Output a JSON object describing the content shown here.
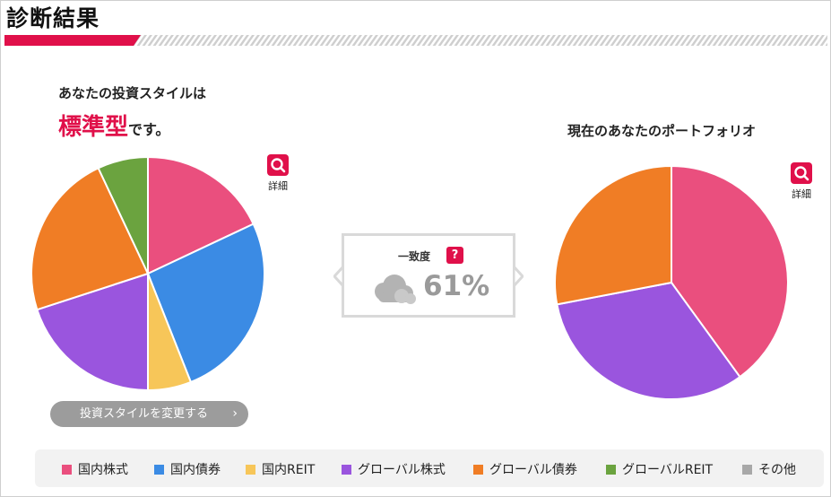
{
  "header": {
    "title": "診断結果"
  },
  "investment_style": {
    "intro": "あなたの投資スタイルは",
    "style_name": "標準型",
    "suffix": "です。"
  },
  "portfolio": {
    "title": "現在のあなたのポートフォリオ"
  },
  "detail": {
    "label": "詳細",
    "icon": "search-icon"
  },
  "match": {
    "label": "一致度",
    "help": "?",
    "value": "61%",
    "icon": "cloud-icon"
  },
  "change_button": {
    "label": "投資スタイルを変更する",
    "chevron": "›"
  },
  "colors": {
    "accent": "#e0104a",
    "domestic_stock": "#ea4f7e",
    "domestic_bond": "#3b8be4",
    "domestic_reit": "#f7c659",
    "global_stock": "#9a55de",
    "global_bond": "#f07d25",
    "global_reit": "#6ba33f",
    "other": "#a8a8a8"
  },
  "legend": [
    {
      "label": "国内株式",
      "color": "#ea4f7e"
    },
    {
      "label": "国内債券",
      "color": "#3b8be4"
    },
    {
      "label": "国内REIT",
      "color": "#f7c659"
    },
    {
      "label": "グローバル株式",
      "color": "#9a55de"
    },
    {
      "label": "グローバル債券",
      "color": "#f07d25"
    },
    {
      "label": "グローバルREIT",
      "color": "#6ba33f"
    },
    {
      "label": "その他",
      "color": "#a8a8a8"
    }
  ],
  "chart_data": [
    {
      "type": "pie",
      "categories": [
        "国内株式",
        "国内債券",
        "国内REIT",
        "グローバル株式",
        "グローバル債券",
        "グローバルREIT"
      ],
      "values": [
        18,
        26,
        6,
        20,
        23,
        7
      ],
      "colors": [
        "#ea4f7e",
        "#3b8be4",
        "#f7c659",
        "#9a55de",
        "#f07d25",
        "#6ba33f"
      ]
    },
    {
      "type": "pie",
      "categories": [
        "国内株式",
        "グローバル株式",
        "グローバル債券"
      ],
      "values": [
        40,
        32,
        28
      ],
      "colors": [
        "#ea4f7e",
        "#9a55de",
        "#f07d25"
      ]
    }
  ]
}
